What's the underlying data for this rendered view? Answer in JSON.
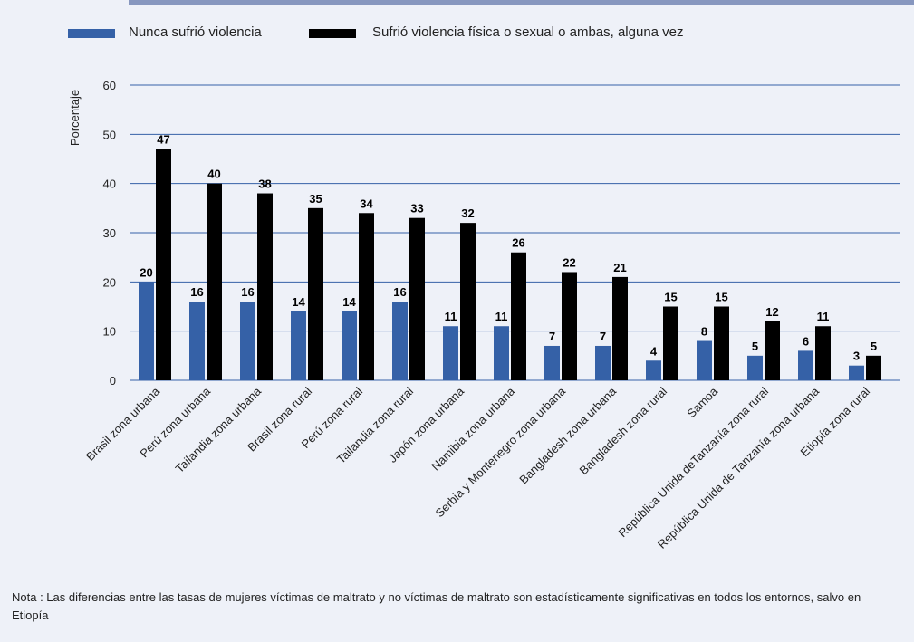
{
  "colors": {
    "series1": "#3561a7",
    "series2": "#000000",
    "grid": "#3561a7",
    "accent": "#8797bf",
    "background": "#eef1f8"
  },
  "legend": {
    "item1": "Nunca sufrió violencia",
    "item2": "Sufrió violencia física o sexual o ambas, alguna vez"
  },
  "note": "Nota : Las diferencias entre las tasas de mujeres víctimas de maltrato y no víctimas de maltrato son estadísticamente significativas en todos los entornos, salvo en Etiopía",
  "chart_data": {
    "type": "bar",
    "ylabel": "Porcentaje",
    "xlabel": "",
    "ylim": [
      0,
      60
    ],
    "yticks": [
      0,
      10,
      20,
      30,
      40,
      50,
      60
    ],
    "grid": true,
    "legend_position": "top-left",
    "categories": [
      "Brasil zona urbana",
      "Perú zona urbana",
      "Tailandia zona urbana",
      "Brasil zona rural",
      "Perú zona rural",
      "Tailandia zona rural",
      "Japón zona urbana",
      "Namibia zona urbana",
      "Serbia y Montenegro zona urbana",
      "Bangladesh zona urbana",
      "Bangladesh zona rural",
      "Samoa",
      "República Unida deTanzanía zona rural",
      "República Unida de Tanzanía zona urbana",
      "Etiopía zona rural"
    ],
    "series": [
      {
        "name": "Nunca sufrió violencia",
        "values": [
          20,
          16,
          16,
          14,
          14,
          16,
          11,
          11,
          7,
          7,
          4,
          8,
          5,
          6,
          3
        ]
      },
      {
        "name": "Sufrió violencia física o sexual o ambas, alguna vez",
        "values": [
          47,
          40,
          38,
          35,
          34,
          33,
          32,
          26,
          22,
          21,
          15,
          15,
          12,
          11,
          5
        ]
      }
    ]
  }
}
